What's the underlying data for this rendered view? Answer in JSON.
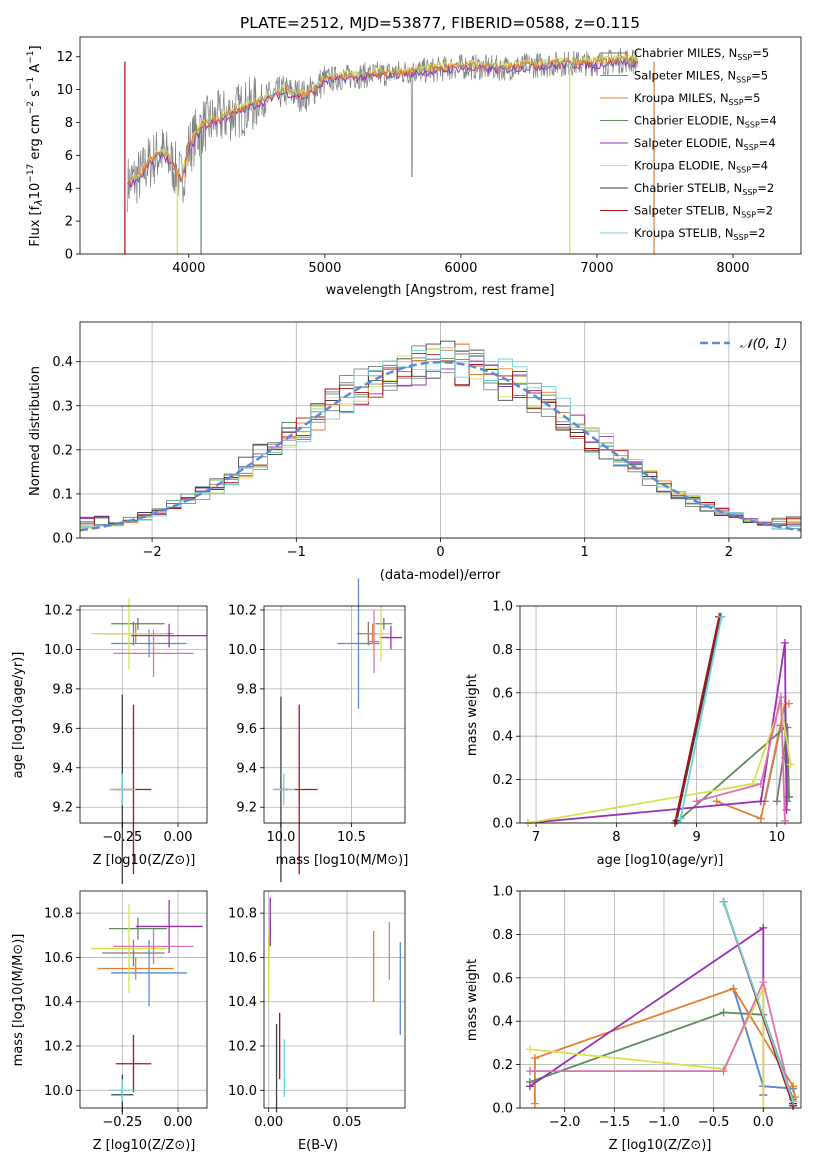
{
  "colors": {
    "chab_miles": "#7b7b7b",
    "salp_miles": "#8b8b8b",
    "kroupa_miles": "#e08030",
    "chab_elodie": "#5b8c5b",
    "salp_elodie": "#9b2fb5",
    "kroupa_elodie": "#d8e050",
    "chab_stelib": "#404040",
    "salp_stelib": "#b01010",
    "kroupa_stelib": "#70d0d8",
    "blue": "#5a8ad6",
    "pink": "#e070b0",
    "normal": "#5a8ad6"
  },
  "chart_data": [
    {
      "id": "spectrum",
      "type": "line",
      "title": "PLATE=2512, MJD=53877, FIBERID=0588, z=0.115",
      "xlabel": "wavelength [Angstrom, rest frame]",
      "ylabel": "Flux [f_λ 10^-17 erg cm^-2 s^-1 A^-1]",
      "xlim": [
        3200,
        8500
      ],
      "ylim": [
        0,
        13.2
      ],
      "xticks": [
        "4000",
        "5000",
        "6000",
        "7000",
        "8000"
      ],
      "yticks": [
        "0",
        "2",
        "4",
        "6",
        "8",
        "10",
        "12"
      ],
      "legend_position": "upper-right",
      "legend": [
        {
          "label": "Chabrier MILES, N",
          "sub": "SSP",
          "suffix": "=5"
        },
        {
          "label": "Salpeter MILES, N",
          "sub": "SSP",
          "suffix": "=5"
        },
        {
          "label": "Kroupa MILES, N",
          "sub": "SSP",
          "suffix": "=5"
        },
        {
          "label": "Chabrier ELODIE, N",
          "sub": "SSP",
          "suffix": "=4"
        },
        {
          "label": "Salpeter ELODIE, N",
          "sub": "SSP",
          "suffix": "=4"
        },
        {
          "label": "Kroupa ELODIE, N",
          "sub": "SSP",
          "suffix": "=4"
        },
        {
          "label": "Chabrier STELIB, N",
          "sub": "SSP",
          "suffix": "=2"
        },
        {
          "label": "Salpeter STELIB, N",
          "sub": "SSP",
          "suffix": "=2"
        },
        {
          "label": "Kroupa STELIB, N",
          "sub": "SSP",
          "suffix": "=2"
        }
      ],
      "continuum": [
        [
          3550,
          4.3
        ],
        [
          3650,
          4.8
        ],
        [
          3700,
          5.5
        ],
        [
          3800,
          6.2
        ],
        [
          3850,
          5.8
        ],
        [
          3950,
          4.5
        ],
        [
          4000,
          6.5
        ],
        [
          4100,
          7.8
        ],
        [
          4300,
          8.5
        ],
        [
          4500,
          9.2
        ],
        [
          4700,
          9.9
        ],
        [
          4860,
          9.6
        ],
        [
          5000,
          10.6
        ],
        [
          5200,
          10.8
        ],
        [
          5500,
          11.0
        ],
        [
          5800,
          11.2
        ],
        [
          6000,
          11.4
        ],
        [
          6300,
          11.3
        ],
        [
          6563,
          11.5
        ],
        [
          6800,
          11.6
        ],
        [
          7000,
          11.6
        ],
        [
          7200,
          11.8
        ],
        [
          7300,
          11.7
        ]
      ]
    },
    {
      "id": "residuals",
      "type": "bar",
      "xlabel": "(data-model)/error",
      "ylabel": "Normed distribution",
      "xlim": [
        -2.5,
        2.5
      ],
      "ylim": [
        0,
        0.49
      ],
      "xticks": [
        "−2",
        "−1",
        "0",
        "1",
        "2"
      ],
      "yticks": [
        "0.0",
        "0.1",
        "0.2",
        "0.3",
        "0.4"
      ],
      "legend": [
        "𝒩(0, 1)"
      ],
      "legend_position": "upper-right",
      "bin_width": 0.1
    },
    {
      "id": "age_vs_Z",
      "type": "scatter",
      "xlabel": "Z [log10(Z/Z⊙)]",
      "ylabel": "age [log10(age/yr)]",
      "xlim": [
        -0.44,
        0.13
      ],
      "ylim": [
        9.12,
        10.22
      ],
      "xticks": [
        "−0.25",
        "0.00"
      ],
      "yticks": [
        "9.2",
        "9.4",
        "9.6",
        "9.8",
        "10.0",
        "10.2"
      ],
      "points": [
        {
          "c": "chab_miles",
          "x": -0.2,
          "y": 10.08,
          "xe": 0.14,
          "ye": 0.06
        },
        {
          "c": "blue",
          "x": -0.13,
          "y": 10.03,
          "xe": 0.17,
          "ye": 0.07
        },
        {
          "c": "kroupa_miles",
          "x": -0.19,
          "y": 10.08,
          "xe": 0.17,
          "ye": 0.05
        },
        {
          "c": "chab_elodie",
          "x": -0.18,
          "y": 10.13,
          "xe": 0.12,
          "ye": 0.03
        },
        {
          "c": "salp_elodie",
          "x": -0.04,
          "y": 10.07,
          "xe": 0.17,
          "ye": 0.06
        },
        {
          "c": "kroupa_elodie",
          "x": -0.22,
          "y": 10.08,
          "xe": 0.17,
          "ye": 0.18
        },
        {
          "c": "pink",
          "x": -0.11,
          "y": 9.98,
          "xe": 0.18,
          "ye": 0.12
        },
        {
          "c": "chab_stelib",
          "x": -0.25,
          "y": 9.29,
          "xe": 0.05,
          "ye": 0.48
        },
        {
          "c": "salp_stelib",
          "x": -0.2,
          "y": 9.29,
          "xe": 0.08,
          "ye": 0.43
        },
        {
          "c": "kroupa_stelib",
          "x": -0.25,
          "y": 9.29,
          "xe": 0.06,
          "ye": 0.08
        }
      ]
    },
    {
      "id": "age_vs_mass",
      "type": "scatter",
      "xlabel": "mass [log10(M/M⊙)]",
      "xlim": [
        9.88,
        10.88
      ],
      "ylim": [
        9.12,
        10.22
      ],
      "xticks": [
        "10.0",
        "10.5"
      ],
      "yticks": [
        "9.2",
        "9.4",
        "9.6",
        "9.8",
        "10.0",
        "10.2"
      ],
      "points": [
        {
          "c": "chab_miles",
          "x": 10.62,
          "y": 10.08,
          "xe": 0.08,
          "ye": 0.06
        },
        {
          "c": "blue",
          "x": 10.55,
          "y": 10.03,
          "xe": 0.15,
          "ye": 0.33
        },
        {
          "c": "kroupa_miles",
          "x": 10.65,
          "y": 10.08,
          "xe": 0.08,
          "ye": 0.05
        },
        {
          "c": "chab_elodie",
          "x": 10.73,
          "y": 10.13,
          "xe": 0.06,
          "ye": 0.03
        },
        {
          "c": "salp_elodie",
          "x": 10.78,
          "y": 10.06,
          "xe": 0.08,
          "ye": 0.06
        },
        {
          "c": "kroupa_elodie",
          "x": 10.71,
          "y": 10.08,
          "xe": 0.06,
          "ye": 0.14
        },
        {
          "c": "pink",
          "x": 10.66,
          "y": 10.04,
          "xe": 0.04,
          "ye": 0.16
        },
        {
          "c": "chab_stelib",
          "x": 10.0,
          "y": 9.29,
          "xe": 0.05,
          "ye": 0.47
        },
        {
          "c": "salp_stelib",
          "x": 10.13,
          "y": 9.29,
          "xe": 0.13,
          "ye": 0.43
        },
        {
          "c": "kroupa_stelib",
          "x": 10.02,
          "y": 9.29,
          "xe": 0.08,
          "ye": 0.08
        }
      ]
    },
    {
      "id": "mass_weight_vs_age",
      "type": "line",
      "xlabel": "age [log10(age/yr)]",
      "ylabel": "mass weight",
      "xlim": [
        6.8,
        10.3
      ],
      "ylim": [
        0,
        1.0
      ],
      "xticks": [
        "7",
        "8",
        "9",
        "10"
      ],
      "yticks": [
        "0.0",
        "0.2",
        "0.4",
        "0.6",
        "0.8",
        "1.0"
      ],
      "series": [
        {
          "c": "chab_miles",
          "pts": [
            [
              10.0,
              0.1
            ],
            [
              10.13,
              0.44
            ],
            [
              10.15,
              0.12
            ],
            [
              10.1,
              0.3
            ]
          ]
        },
        {
          "c": "blue",
          "pts": [
            [
              9.85,
              0.1
            ],
            [
              10.05,
              0.45
            ],
            [
              10.1,
              0.55
            ],
            [
              10.13,
              0.1
            ]
          ]
        },
        {
          "c": "kroupa_miles",
          "pts": [
            [
              9.25,
              0.1
            ],
            [
              9.8,
              0.02
            ],
            [
              10.1,
              0.55
            ],
            [
              10.15,
              0.55
            ]
          ]
        },
        {
          "c": "chab_elodie",
          "pts": [
            [
              8.8,
              0.02
            ],
            [
              10.1,
              0.44
            ],
            [
              10.15,
              0.12
            ]
          ]
        },
        {
          "c": "salp_elodie",
          "pts": [
            [
              6.9,
              0.0
            ],
            [
              9.8,
              0.1
            ],
            [
              10.1,
              0.83
            ],
            [
              10.12,
              0.06
            ]
          ]
        },
        {
          "c": "kroupa_elodie",
          "pts": [
            [
              6.9,
              0.0
            ],
            [
              9.7,
              0.18
            ],
            [
              10.05,
              0.55
            ],
            [
              10.17,
              0.27
            ]
          ]
        },
        {
          "c": "pink",
          "pts": [
            [
              9.0,
              0.1
            ],
            [
              9.8,
              0.18
            ],
            [
              10.05,
              0.58
            ],
            [
              10.1,
              0.01
            ]
          ]
        },
        {
          "c": "chab_stelib",
          "pts": [
            [
              8.75,
              0.01
            ],
            [
              9.3,
              0.95
            ]
          ]
        },
        {
          "c": "salp_stelib",
          "pts": [
            [
              8.73,
              0.0
            ],
            [
              9.28,
              0.95
            ]
          ]
        },
        {
          "c": "kroupa_stelib",
          "pts": [
            [
              8.8,
              0.02
            ],
            [
              9.31,
              0.95
            ]
          ]
        }
      ]
    },
    {
      "id": "mass_vs_Z",
      "type": "scatter",
      "xlabel": "Z [log10(Z/Z⊙)]",
      "ylabel": "mass [log10(M/M⊙)]",
      "xlim": [
        -0.44,
        0.13
      ],
      "ylim": [
        9.92,
        10.9
      ],
      "xticks": [
        "−0.25",
        "0.00"
      ],
      "yticks": [
        "10.0",
        "10.2",
        "10.4",
        "10.6",
        "10.8"
      ],
      "points": [
        {
          "c": "chab_miles",
          "x": -0.2,
          "y": 10.62,
          "xe": 0.14,
          "ye": 0.06
        },
        {
          "c": "blue",
          "x": -0.13,
          "y": 10.53,
          "xe": 0.17,
          "ye": 0.15
        },
        {
          "c": "kroupa_miles",
          "x": -0.19,
          "y": 10.55,
          "xe": 0.17,
          "ye": 0.05
        },
        {
          "c": "chab_elodie",
          "x": -0.18,
          "y": 10.73,
          "xe": 0.13,
          "ye": 0.05
        },
        {
          "c": "salp_elodie",
          "x": -0.04,
          "y": 10.74,
          "xe": 0.15,
          "ye": 0.12
        },
        {
          "c": "kroupa_elodie",
          "x": -0.22,
          "y": 10.64,
          "xe": 0.17,
          "ye": 0.2
        },
        {
          "c": "pink",
          "x": -0.11,
          "y": 10.65,
          "xe": 0.18,
          "ye": 0.08
        },
        {
          "c": "chab_stelib",
          "x": -0.25,
          "y": 9.98,
          "xe": 0.05,
          "ye": 0.09
        },
        {
          "c": "salp_stelib",
          "x": -0.2,
          "y": 10.12,
          "xe": 0.08,
          "ye": 0.13
        },
        {
          "c": "kroupa_stelib",
          "x": -0.25,
          "y": 10.0,
          "xe": 0.06,
          "ye": 0.05
        }
      ]
    },
    {
      "id": "mass_vs_ebv",
      "type": "scatter",
      "xlabel": "E(B-V)",
      "xlim": [
        -0.003,
        0.087
      ],
      "ylim": [
        9.92,
        10.9
      ],
      "xticks": [
        "0.00",
        "0.05"
      ],
      "yticks": [
        "10.0",
        "10.2",
        "10.4",
        "10.6",
        "10.8"
      ],
      "points": [
        {
          "c": "chab_miles",
          "x": 0.0,
          "y": 10.62,
          "ye": 0.06
        },
        {
          "c": "blue",
          "x": 0.084,
          "y": 10.46,
          "ye": 0.21
        },
        {
          "c": "kroupa_miles",
          "x": 0.067,
          "y": 10.56,
          "ye": 0.16
        },
        {
          "c": "chab_elodie",
          "x": 0.001,
          "y": 10.73,
          "ye": 0.05
        },
        {
          "c": "salp_elodie",
          "x": 0.001,
          "y": 10.76,
          "ye": 0.11
        },
        {
          "c": "kroupa_elodie",
          "x": 0.0,
          "y": 10.55,
          "ye": 0.15
        },
        {
          "c": "pink",
          "x": 0.077,
          "y": 10.63,
          "ye": 0.13
        },
        {
          "c": "chab_stelib",
          "x": 0.005,
          "y": 10.1,
          "ye": 0.2
        },
        {
          "c": "salp_stelib",
          "x": 0.007,
          "y": 10.2,
          "ye": 0.15
        },
        {
          "c": "kroupa_stelib",
          "x": 0.01,
          "y": 10.1,
          "ye": 0.13
        }
      ]
    },
    {
      "id": "mass_weight_vs_Z",
      "type": "line",
      "xlabel": "Z [log10(Z/Z⊙)]",
      "ylabel": "mass weight",
      "xlim": [
        -2.45,
        0.38
      ],
      "ylim": [
        0,
        1.0
      ],
      "xticks": [
        "−2.0",
        "−1.5",
        "−1.0",
        "−0.5",
        "0.0"
      ],
      "yticks": [
        "0.0",
        "0.2",
        "0.4",
        "0.6",
        "0.8",
        "1.0"
      ],
      "series": [
        {
          "c": "chab_miles",
          "pts": [
            [
              -0.3,
              0.55
            ],
            [
              0.0,
              0.1
            ],
            [
              0.3,
              0.09
            ]
          ]
        },
        {
          "c": "blue",
          "pts": [
            [
              -0.3,
              0.55
            ],
            [
              0.0,
              0.1
            ],
            [
              0.3,
              0.09
            ]
          ]
        },
        {
          "c": "kroupa_miles",
          "pts": [
            [
              -2.3,
              0.02
            ],
            [
              -2.3,
              0.23
            ],
            [
              -0.3,
              0.55
            ],
            [
              0.3,
              0.1
            ],
            [
              0.32,
              0.05
            ]
          ]
        },
        {
          "c": "chab_elodie",
          "pts": [
            [
              -2.35,
              0.12
            ],
            [
              -0.4,
              0.44
            ],
            [
              0.0,
              0.43
            ],
            [
              0.3,
              0.04
            ]
          ]
        },
        {
          "c": "salp_elodie",
          "pts": [
            [
              -2.35,
              0.1
            ],
            [
              0.0,
              0.83
            ],
            [
              0.0,
              0.06
            ]
          ]
        },
        {
          "c": "kroupa_elodie",
          "pts": [
            [
              -2.35,
              0.27
            ],
            [
              -0.4,
              0.18
            ],
            [
              0.0,
              0.55
            ],
            [
              0.0,
              0.0
            ]
          ]
        },
        {
          "c": "pink",
          "pts": [
            [
              -2.35,
              0.17
            ],
            [
              -0.4,
              0.17
            ],
            [
              0.0,
              0.58
            ],
            [
              0.3,
              0.01
            ]
          ]
        },
        {
          "c": "chab_stelib",
          "pts": [
            [
              -0.4,
              0.95
            ],
            [
              0.3,
              0.02
            ]
          ]
        },
        {
          "c": "salp_stelib",
          "pts": [
            [
              -0.4,
              0.95
            ],
            [
              0.3,
              0.01
            ]
          ]
        },
        {
          "c": "kroupa_stelib",
          "pts": [
            [
              -0.4,
              0.95
            ],
            [
              0.3,
              0.03
            ]
          ]
        }
      ]
    }
  ]
}
